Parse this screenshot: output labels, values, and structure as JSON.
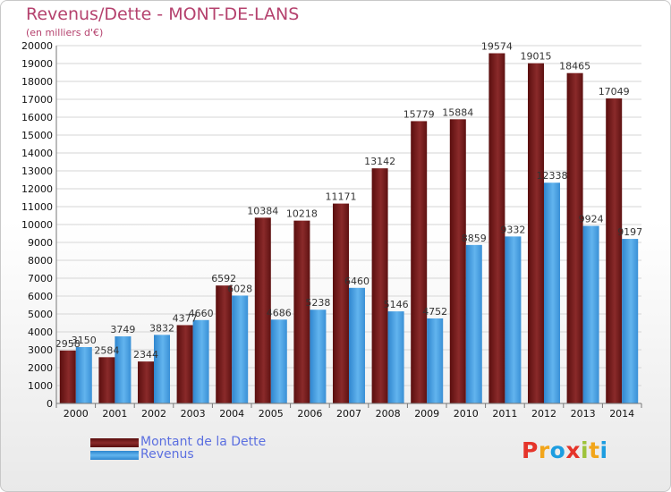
{
  "header": {
    "title": "Revenus/Dette - MONT-DE-LANS",
    "subtitle": "(en milliers d'€)"
  },
  "colors": {
    "dette": "#7a1a1a",
    "revenus": "#4ea6e6",
    "title": "#b5426e",
    "legend_text": "#5b6fe0"
  },
  "logo": {
    "letters": [
      "P",
      "r",
      "o",
      "x",
      "i",
      "t",
      "i"
    ],
    "colors": [
      "#e5342a",
      "#f2a51a",
      "#1d9de0",
      "#e5342a",
      "#9dc33b",
      "#f2a51a",
      "#1d9de0"
    ]
  },
  "chart_data": {
    "type": "bar",
    "title": "Revenus/Dette - MONT-DE-LANS",
    "ylabel": "(en milliers d'€)",
    "categories": [
      "2000",
      "2001",
      "2002",
      "2003",
      "2004",
      "2005",
      "2006",
      "2007",
      "2008",
      "2009",
      "2010",
      "2011",
      "2012",
      "2013",
      "2014"
    ],
    "series": [
      {
        "name": "Montant de la Dette",
        "values": [
          2958,
          2584,
          2344,
          4377,
          6592,
          10384,
          10218,
          11171,
          13142,
          15779,
          15884,
          19574,
          19015,
          18465,
          17049
        ]
      },
      {
        "name": "Revenus",
        "values": [
          3150,
          3749,
          3832,
          4660,
          6028,
          4686,
          5238,
          6460,
          5146,
          4752,
          8859,
          9332,
          12338,
          9924,
          9197
        ]
      }
    ],
    "value_labels": [
      [
        "2958",
        "2584",
        "2344",
        "4377",
        "6592",
        "10384",
        "10218",
        "11171",
        "13142",
        "15779",
        "15884",
        "19574",
        "19015",
        "18465",
        "17049"
      ],
      [
        "3150",
        "3749",
        "3832",
        "4660",
        "6028",
        "4686",
        "5238",
        "6460",
        "5146",
        "4752",
        "8859",
        "9332",
        "12338",
        "9924",
        "9197"
      ]
    ],
    "ylim": [
      0,
      20000
    ],
    "yticks": [
      "0",
      "1000",
      "2000",
      "3000",
      "4000",
      "5000",
      "6000",
      "7000",
      "8000",
      "9000",
      "10000",
      "11000",
      "12000",
      "13000",
      "14000",
      "15000",
      "16000",
      "17000",
      "18000",
      "19000",
      "20000"
    ],
    "grid": true,
    "legend": "bottom-left"
  }
}
